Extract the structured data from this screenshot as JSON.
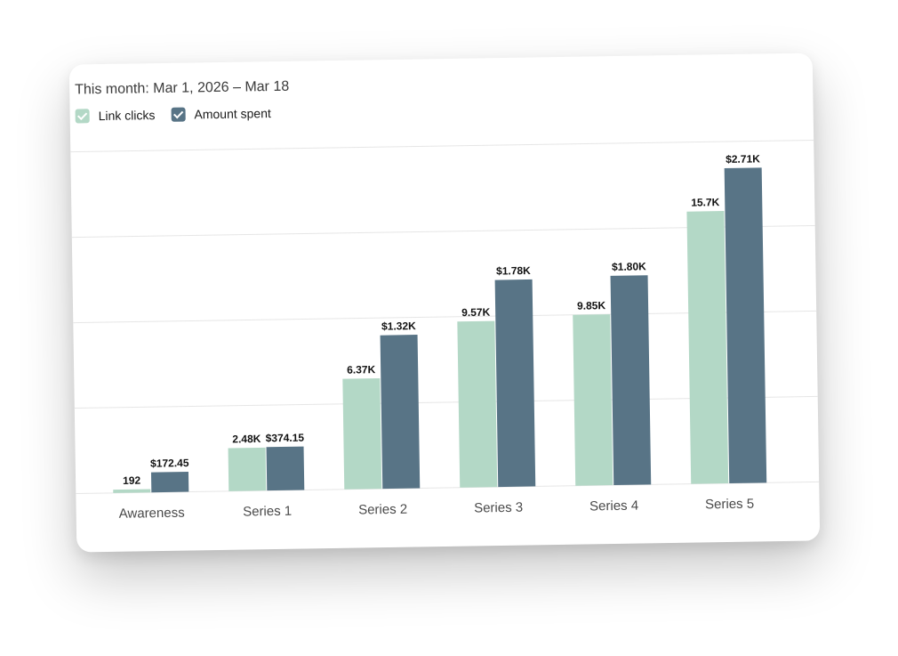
{
  "header": {
    "date_range": "This month: Mar 1, 2026 – Mar 18"
  },
  "legend": [
    {
      "label": "Link clicks",
      "color": "#b3d8c6",
      "checked": true
    },
    {
      "label": "Amount spent",
      "color": "#587486",
      "checked": true
    }
  ],
  "chart_data": {
    "type": "bar",
    "categories": [
      "Awareness",
      "Series 1",
      "Series 2",
      "Series 3",
      "Series 4",
      "Series 5"
    ],
    "series": [
      {
        "name": "Link clicks",
        "color": "#b3d8c6",
        "values": [
          192,
          2480,
          6370,
          9570,
          9850,
          15700
        ],
        "labels": [
          "192",
          "2.48K",
          "6.37K",
          "9.57K",
          "9.85K",
          "15.7K"
        ]
      },
      {
        "name": "Amount spent",
        "color": "#587486",
        "values": [
          172.45,
          374.15,
          1320,
          1780,
          1800,
          2710
        ],
        "labels": [
          "$172.45",
          "$374.15",
          "$1.32K",
          "$1.78K",
          "$1.80K",
          "$2.71K"
        ]
      }
    ],
    "grid": true,
    "legend_position": "top-left"
  }
}
